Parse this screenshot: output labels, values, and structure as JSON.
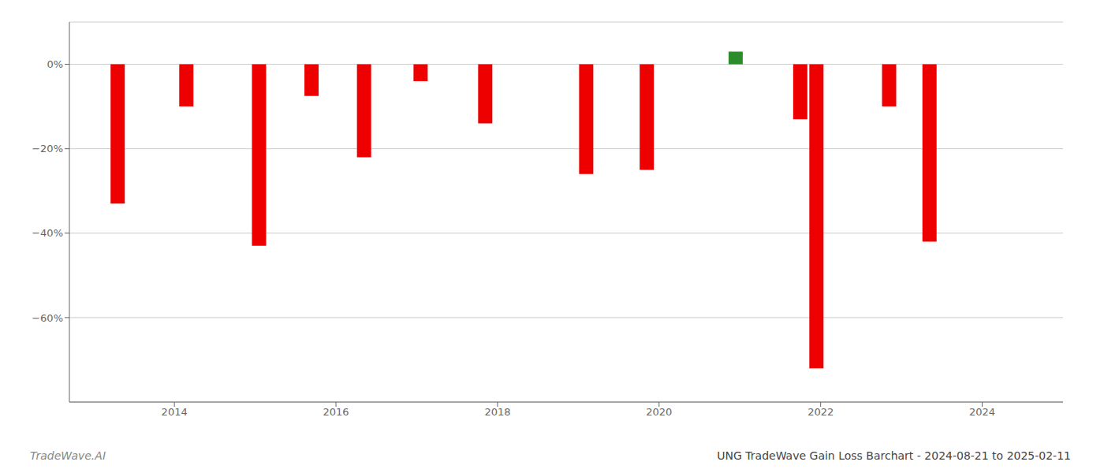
{
  "chart_data": {
    "type": "bar",
    "title": "UNG TradeWave Gain Loss Barchart - 2024-08-21 to 2025-02-11",
    "annotations": [
      "TradeWave.AI"
    ],
    "x": [
      2013.3,
      2014.15,
      2015.05,
      2015.7,
      2016.35,
      2017.05,
      2017.85,
      2019.1,
      2019.85,
      2020.95,
      2021.75,
      2021.95,
      2022.85,
      2023.35
    ],
    "values": [
      -33.0,
      -10.0,
      -43.0,
      -7.5,
      -22.0,
      -4.0,
      -14.0,
      -26.0,
      -25.0,
      3.0,
      -13.0,
      -72.0,
      -10.0,
      -42.0
    ],
    "colors": [
      "#ee0000",
      "#ee0000",
      "#ee0000",
      "#ee0000",
      "#ee0000",
      "#ee0000",
      "#ee0000",
      "#ee0000",
      "#ee0000",
      "#2a8c2a",
      "#ee0000",
      "#ee0000",
      "#ee0000",
      "#ee0000"
    ],
    "xlim": [
      2012.7,
      2025.0
    ],
    "xticks": [
      2014,
      2016,
      2018,
      2020,
      2022,
      2024
    ],
    "ylim": [
      -80,
      10
    ],
    "yticks": [
      {
        "value": 0,
        "label": "0%"
      },
      {
        "value": -20,
        "label": "−20%"
      },
      {
        "value": -40,
        "label": "−40%"
      },
      {
        "value": -60,
        "label": "−60%"
      }
    ],
    "grid": true
  }
}
